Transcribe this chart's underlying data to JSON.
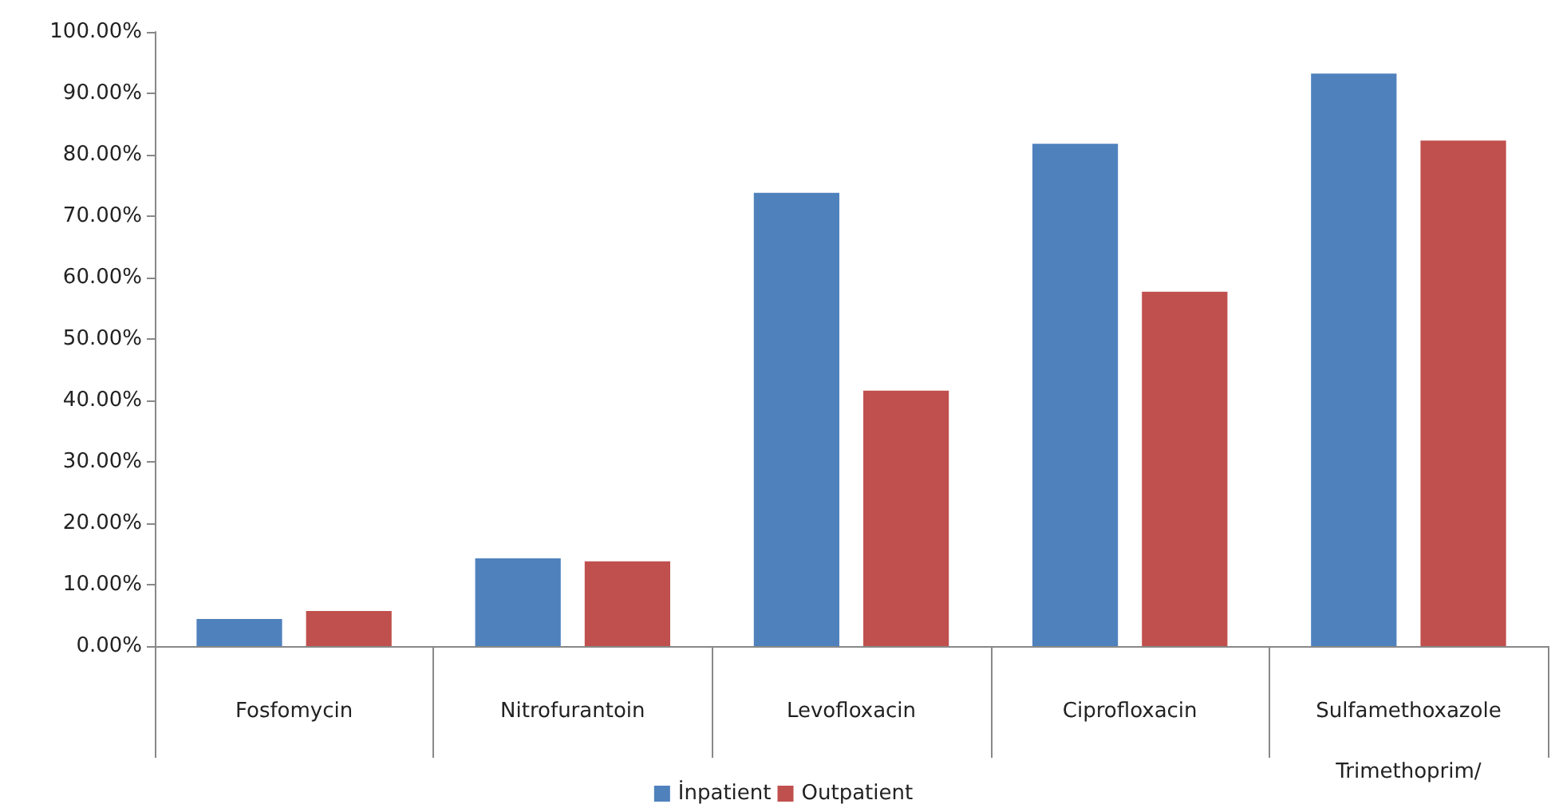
{
  "chart_data": {
    "type": "bar",
    "categories": [
      "Fosfomycin",
      "Nitrofurantoin",
      "Levofloxacin",
      "Ciprofloxacin",
      "Sulfamethoxazole\nTrimethoprim/"
    ],
    "series": [
      {
        "name": "İnpatient",
        "color": "#4f81bd",
        "values": [
          4.4,
          14.3,
          73.8,
          81.8,
          93.2
        ]
      },
      {
        "name": "Outpatient",
        "color": "#c0504d",
        "values": [
          5.7,
          13.8,
          41.6,
          57.7,
          82.3
        ]
      }
    ],
    "ylim": [
      0,
      100
    ],
    "yticks": [
      {
        "value": 0,
        "label": "0.00%"
      },
      {
        "value": 10,
        "label": "10.00%"
      },
      {
        "value": 20,
        "label": "20.00%"
      },
      {
        "value": 30,
        "label": "30.00%"
      },
      {
        "value": 40,
        "label": "40.00%"
      },
      {
        "value": 50,
        "label": "50.00%"
      },
      {
        "value": 60,
        "label": "60.00%"
      },
      {
        "value": 70,
        "label": "70.00%"
      },
      {
        "value": 80,
        "label": "80.00%"
      },
      {
        "value": 90,
        "label": "90.00%"
      },
      {
        "value": 100,
        "label": "100.00%"
      }
    ],
    "grid": false,
    "legend": "bottom"
  }
}
